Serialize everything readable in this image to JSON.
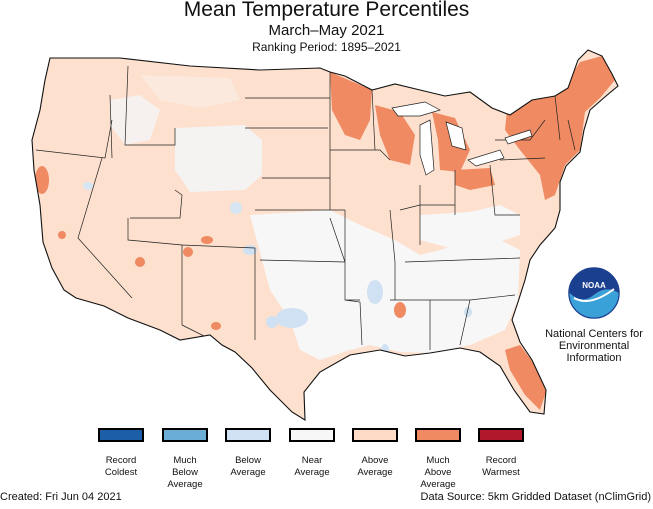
{
  "title": "Mean Temperature Percentiles",
  "subtitle": "March–May 2021",
  "ranking_period": "Ranking Period: 1895–2021",
  "legend": [
    {
      "label": "Record\nColdest",
      "color": "#1c5fa8"
    },
    {
      "label": "Much\nBelow\nAverage",
      "color": "#6aaed6"
    },
    {
      "label": "Below\nAverage",
      "color": "#cfe1f2"
    },
    {
      "label": "Near\nAverage",
      "color": "#f7f7f7"
    },
    {
      "label": "Above\nAverage",
      "color": "#fddbc7"
    },
    {
      "label": "Much\nAbove\nAverage",
      "color": "#ef8a62"
    },
    {
      "label": "Record\nWarmest",
      "color": "#b2182b"
    }
  ],
  "organization": "National Centers for\nEnvironmental\nInformation",
  "logo_text": "NOAA",
  "created": "Created: Fri Jun 04 2021",
  "data_source": "Data Source: 5km Gridded Dataset (nClimGrid)"
}
